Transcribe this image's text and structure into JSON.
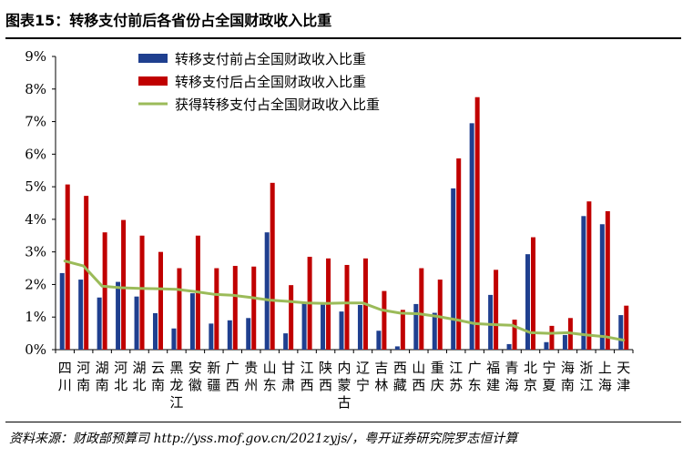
{
  "figure": {
    "title": "图表15：转移支付前后各省份占全国财政收入比重",
    "source": "资料来源：财政部预算司 http://yss.mof.gov.cn/2021zyjs/，粤开证券研究院罗志恒计算"
  },
  "chart_data": {
    "type": "bar",
    "categories": [
      "四川",
      "河南",
      "湖南",
      "河北",
      "湖北",
      "云南",
      "黑龙江",
      "安徽",
      "新疆",
      "广西",
      "贵州",
      "山东",
      "甘肃",
      "江西",
      "陕西",
      "内蒙古",
      "辽宁",
      "吉林",
      "西藏",
      "山西",
      "重庆",
      "江苏",
      "广东",
      "福建",
      "青海",
      "北京",
      "宁夏",
      "海南",
      "浙江",
      "上海",
      "天津"
    ],
    "series": [
      {
        "name": "转移支付前占全国财政收入比重",
        "type": "bar",
        "color": "#1f3f8f",
        "values": [
          2.35,
          2.15,
          1.6,
          2.08,
          1.63,
          1.12,
          0.65,
          1.73,
          0.8,
          0.9,
          0.97,
          3.6,
          0.5,
          1.42,
          1.38,
          1.17,
          1.37,
          0.58,
          0.1,
          1.4,
          1.13,
          4.95,
          6.95,
          1.68,
          0.17,
          2.93,
          0.23,
          0.45,
          4.1,
          3.85,
          1.06
        ]
      },
      {
        "name": "转移支付后占全国财政收入比重",
        "type": "bar",
        "color": "#c00000",
        "values": [
          5.07,
          4.72,
          3.6,
          3.98,
          3.5,
          3.0,
          2.5,
          3.5,
          2.5,
          2.57,
          2.55,
          5.12,
          1.98,
          2.85,
          2.8,
          2.6,
          2.8,
          1.8,
          1.22,
          2.5,
          2.15,
          5.87,
          7.75,
          2.45,
          0.92,
          3.45,
          0.73,
          0.97,
          4.55,
          4.25,
          1.35
        ]
      },
      {
        "name": "获得转移支付占全国财政收入比重",
        "type": "line",
        "color": "#9bbb59",
        "values": [
          2.72,
          2.57,
          1.95,
          1.9,
          1.88,
          1.87,
          1.85,
          1.78,
          1.7,
          1.67,
          1.6,
          1.52,
          1.48,
          1.43,
          1.42,
          1.43,
          1.43,
          1.22,
          1.12,
          1.1,
          1.02,
          0.92,
          0.8,
          0.77,
          0.75,
          0.52,
          0.5,
          0.52,
          0.45,
          0.4,
          0.29
        ]
      }
    ],
    "y_ticks": [
      "0%",
      "1%",
      "2%",
      "3%",
      "4%",
      "5%",
      "6%",
      "7%",
      "8%",
      "9%"
    ],
    "ylim": [
      0,
      9
    ],
    "grid": false,
    "legend_position": "top-center"
  }
}
